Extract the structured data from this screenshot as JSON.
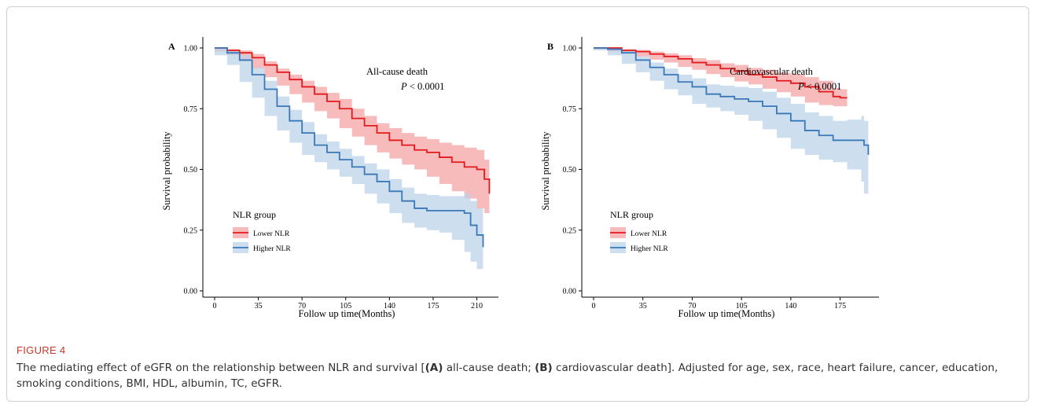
{
  "chart_data": [
    {
      "panel": "A",
      "type": "line",
      "title": "All-cause death",
      "pvalue": "< 0.0001",
      "xlabel": "Follow up time(Months)",
      "ylabel": "Survival probability",
      "xlim": [
        0,
        221
      ],
      "ylim": [
        0,
        1.05
      ],
      "xticks": [
        0,
        35,
        70,
        105,
        140,
        175,
        210
      ],
      "yticks": [
        "0.00",
        "0.25",
        "0.50",
        "0.75",
        "1.00"
      ],
      "legend_title": "NLR group",
      "legend_position": "lower-left",
      "series": [
        {
          "name": "Lower NLR",
          "color": "#e31a1c",
          "band_color": "#f4a4a6",
          "x": [
            0,
            10,
            20,
            30,
            40,
            50,
            60,
            70,
            80,
            90,
            100,
            110,
            120,
            130,
            140,
            150,
            160,
            170,
            180,
            190,
            200,
            210,
            216,
            220
          ],
          "y": [
            1.0,
            0.99,
            0.98,
            0.96,
            0.93,
            0.9,
            0.87,
            0.84,
            0.81,
            0.78,
            0.75,
            0.71,
            0.68,
            0.65,
            0.62,
            0.6,
            0.58,
            0.57,
            0.55,
            0.53,
            0.51,
            0.5,
            0.46,
            0.4
          ],
          "lower": [
            1.0,
            0.985,
            0.97,
            0.945,
            0.915,
            0.88,
            0.845,
            0.81,
            0.775,
            0.74,
            0.71,
            0.67,
            0.635,
            0.6,
            0.57,
            0.545,
            0.52,
            0.5,
            0.47,
            0.44,
            0.41,
            0.38,
            0.34,
            0.32
          ],
          "upper": [
            1.0,
            0.995,
            0.99,
            0.975,
            0.945,
            0.915,
            0.89,
            0.865,
            0.84,
            0.815,
            0.79,
            0.75,
            0.72,
            0.69,
            0.67,
            0.65,
            0.635,
            0.625,
            0.61,
            0.6,
            0.59,
            0.58,
            0.54,
            0.52
          ]
        },
        {
          "name": "Higher NLR",
          "color": "#3a78b8",
          "band_color": "#bcd3ea",
          "x": [
            0,
            10,
            20,
            30,
            40,
            50,
            60,
            70,
            80,
            90,
            100,
            110,
            120,
            130,
            140,
            150,
            160,
            170,
            180,
            190,
            200,
            205,
            210,
            215
          ],
          "y": [
            1.0,
            0.98,
            0.95,
            0.89,
            0.83,
            0.76,
            0.7,
            0.65,
            0.6,
            0.57,
            0.54,
            0.51,
            0.48,
            0.45,
            0.41,
            0.37,
            0.34,
            0.33,
            0.33,
            0.33,
            0.32,
            0.27,
            0.23,
            0.18
          ],
          "lower": [
            1.0,
            0.97,
            0.93,
            0.86,
            0.795,
            0.72,
            0.66,
            0.61,
            0.56,
            0.53,
            0.5,
            0.47,
            0.44,
            0.4,
            0.36,
            0.32,
            0.28,
            0.26,
            0.25,
            0.24,
            0.21,
            0.16,
            0.12,
            0.09
          ],
          "upper": [
            1.0,
            0.99,
            0.97,
            0.92,
            0.865,
            0.8,
            0.745,
            0.695,
            0.645,
            0.615,
            0.585,
            0.555,
            0.525,
            0.5,
            0.46,
            0.425,
            0.4,
            0.395,
            0.39,
            0.39,
            0.4,
            0.37,
            0.34,
            0.3
          ]
        }
      ]
    },
    {
      "panel": "B",
      "type": "line",
      "title": "Cardiovascular death",
      "pvalue": "< 0.0001",
      "xlabel": "Follow up time(Months)",
      "ylabel": "Survival probability",
      "xlim": [
        0,
        197
      ],
      "ylim": [
        0,
        1.05
      ],
      "xticks": [
        0,
        35,
        70,
        105,
        140,
        175
      ],
      "yticks": [
        "0.00",
        "0.25",
        "0.50",
        "0.75",
        "1.00"
      ],
      "legend_title": "NLR group",
      "legend_position": "lower-left",
      "series": [
        {
          "name": "Lower NLR",
          "color": "#e31a1c",
          "band_color": "#f4a4a6",
          "x": [
            0,
            10,
            20,
            30,
            40,
            50,
            60,
            70,
            80,
            90,
            100,
            110,
            120,
            130,
            140,
            150,
            160,
            170,
            175,
            180
          ],
          "y": [
            1.0,
            1.0,
            0.99,
            0.985,
            0.975,
            0.965,
            0.955,
            0.94,
            0.93,
            0.915,
            0.905,
            0.89,
            0.88,
            0.865,
            0.855,
            0.84,
            0.82,
            0.8,
            0.795,
            0.795
          ],
          "lower": [
            1.0,
            0.995,
            0.985,
            0.978,
            0.965,
            0.952,
            0.94,
            0.922,
            0.91,
            0.893,
            0.88,
            0.862,
            0.85,
            0.832,
            0.818,
            0.8,
            0.775,
            0.765,
            0.76,
            0.76
          ],
          "upper": [
            1.0,
            1.0,
            0.995,
            0.992,
            0.985,
            0.978,
            0.97,
            0.958,
            0.95,
            0.937,
            0.93,
            0.918,
            0.91,
            0.898,
            0.892,
            0.88,
            0.865,
            0.835,
            0.83,
            0.835
          ]
        },
        {
          "name": "Higher NLR",
          "color": "#3a78b8",
          "band_color": "#bcd3ea",
          "x": [
            0,
            10,
            20,
            30,
            40,
            50,
            60,
            70,
            80,
            90,
            100,
            110,
            120,
            130,
            140,
            150,
            160,
            170,
            180,
            190,
            192,
            195
          ],
          "y": [
            1.0,
            0.995,
            0.98,
            0.95,
            0.92,
            0.89,
            0.86,
            0.84,
            0.81,
            0.8,
            0.79,
            0.78,
            0.76,
            0.73,
            0.7,
            0.66,
            0.64,
            0.62,
            0.62,
            0.62,
            0.6,
            0.56
          ],
          "lower": [
            1.0,
            0.99,
            0.97,
            0.935,
            0.9,
            0.865,
            0.83,
            0.805,
            0.77,
            0.755,
            0.74,
            0.725,
            0.7,
            0.665,
            0.63,
            0.585,
            0.56,
            0.54,
            0.53,
            0.5,
            0.45,
            0.4
          ],
          "upper": [
            1.0,
            1.0,
            0.99,
            0.965,
            0.94,
            0.915,
            0.89,
            0.875,
            0.85,
            0.845,
            0.84,
            0.835,
            0.82,
            0.795,
            0.77,
            0.735,
            0.72,
            0.7,
            0.705,
            0.72,
            0.7,
            0.68
          ]
        }
      ]
    }
  ],
  "caption": {
    "label": "FIGURE 4",
    "text_parts": [
      {
        "text": "The mediating effect of eGFR on the relationship between NLR and survival [",
        "bold": false
      },
      {
        "text": "(A)",
        "bold": true
      },
      {
        "text": " all-cause death; ",
        "bold": false
      },
      {
        "text": "(B)",
        "bold": true
      },
      {
        "text": " cardiovascular death]. Adjusted for age, sex, race, heart failure, cancer, education, smoking conditions, BMI, HDL, albumin, TC, eGFR.",
        "bold": false
      }
    ]
  }
}
